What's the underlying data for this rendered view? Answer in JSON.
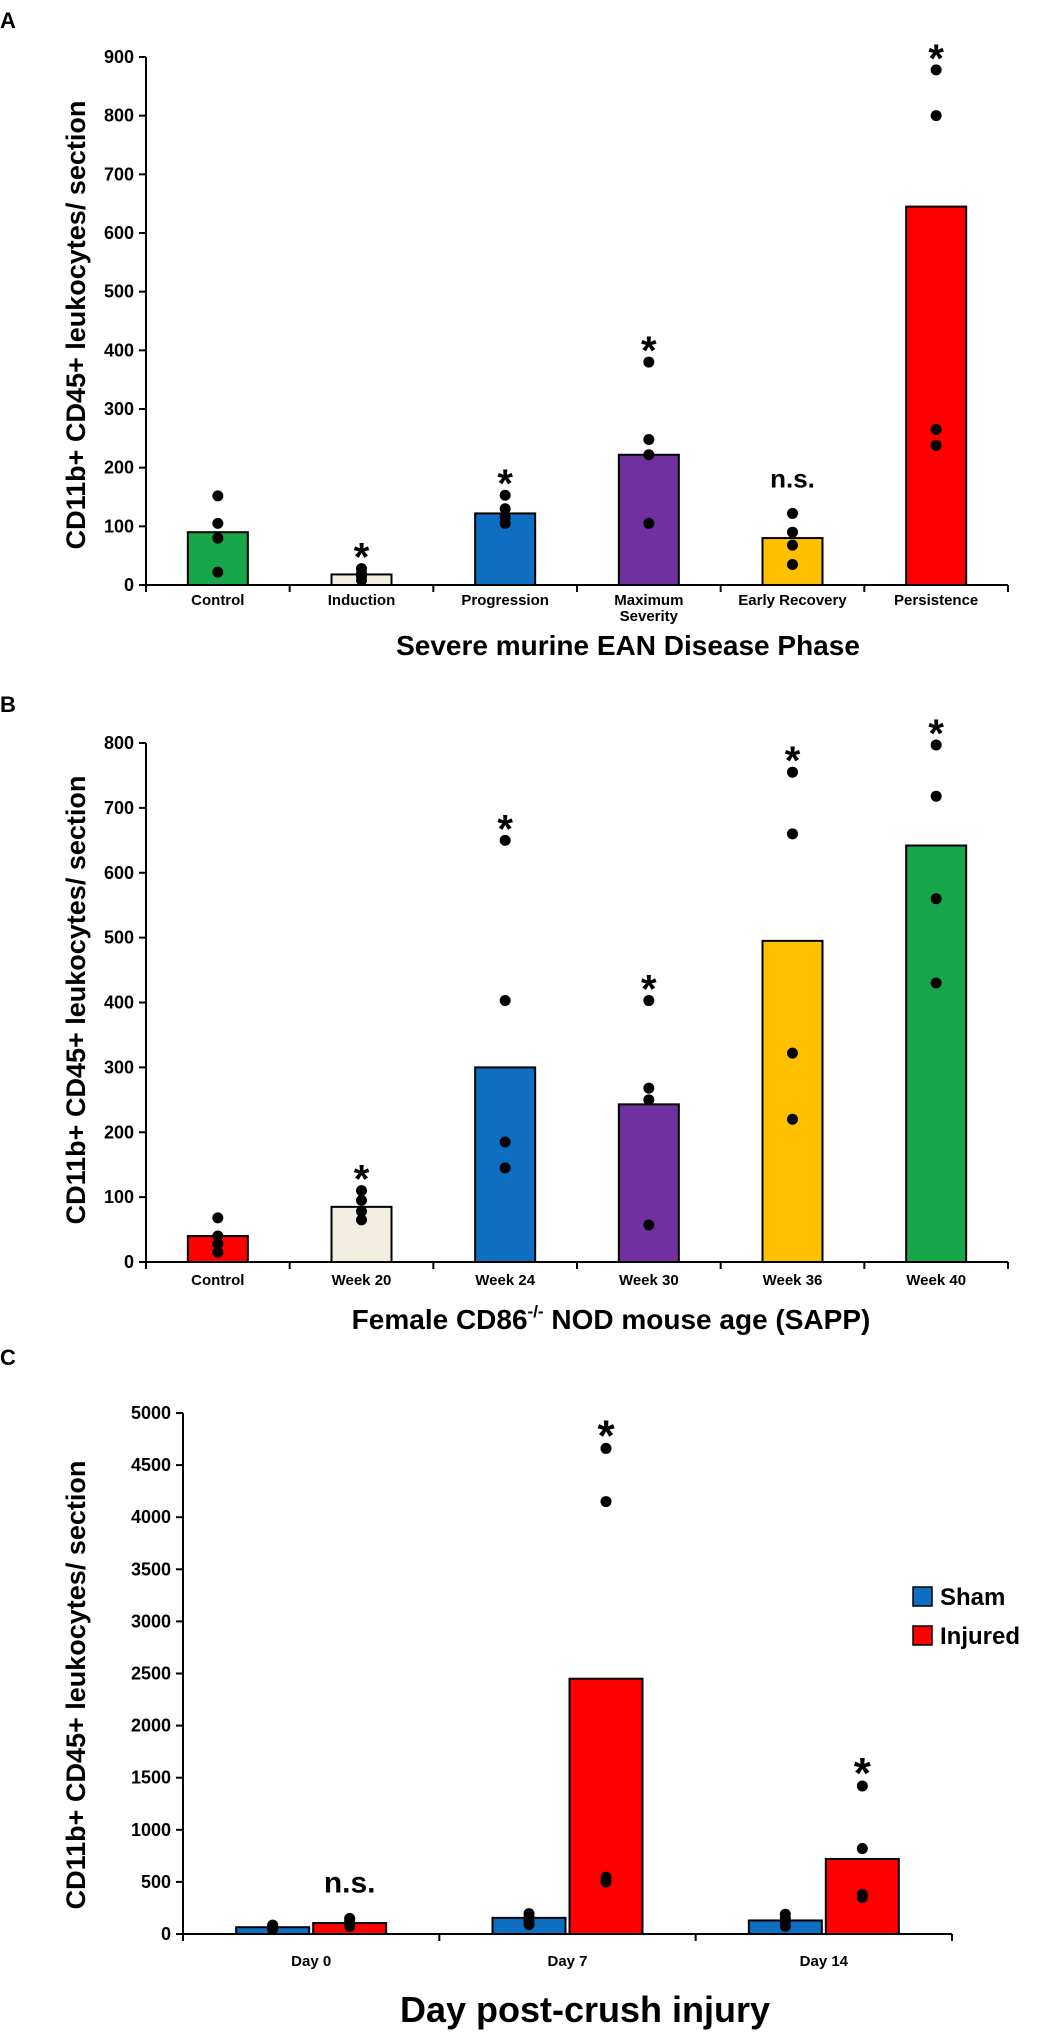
{
  "chart_data": [
    {
      "panel": "A",
      "type": "bar",
      "categories": [
        "Control",
        "Induction",
        "Progression",
        "Maximum Severity",
        "Early Recovery",
        "Persistence"
      ],
      "category_lines": [
        [
          "Control"
        ],
        [
          "Induction"
        ],
        [
          "Progression"
        ],
        [
          "Maximum",
          "Severity"
        ],
        [
          "Early Recovery"
        ],
        [
          "Persistence"
        ]
      ],
      "values": [
        90,
        18,
        122,
        222,
        80,
        645
      ],
      "colors": [
        "#17a64a",
        "#f1eee1",
        "#0e6fc2",
        "#7030a0",
        "#ffc000",
        "#ff0000"
      ],
      "points": [
        [
          22,
          80,
          105,
          152
        ],
        [
          8,
          15,
          20,
          28
        ],
        [
          105,
          115,
          130,
          153
        ],
        [
          105,
          222,
          248,
          380
        ],
        [
          35,
          68,
          90,
          122
        ],
        [
          238,
          265,
          800,
          878
        ]
      ],
      "significance": [
        "",
        "*",
        "*",
        "*",
        "n.s.",
        "*"
      ],
      "ylim": [
        0,
        900
      ],
      "yticks": [
        0,
        100,
        200,
        300,
        400,
        500,
        600,
        700,
        800,
        900
      ],
      "xlabel": "Severe murine EAN Disease Phase",
      "ylabel": "CD11b+ CD45+ leukocytes/ section"
    },
    {
      "panel": "B",
      "type": "bar",
      "categories": [
        "Control",
        "Week 20",
        "Week 24",
        "Week 30",
        "Week 36",
        "Week 40"
      ],
      "values": [
        40,
        85,
        300,
        243,
        495,
        642
      ],
      "colors": [
        "#ff0000",
        "#f1eee1",
        "#0e6fc2",
        "#7030a0",
        "#ffc000",
        "#17a64a"
      ],
      "points": [
        [
          15,
          28,
          40,
          68
        ],
        [
          65,
          78,
          95,
          110
        ],
        [
          145,
          185,
          403,
          650
        ],
        [
          57,
          250,
          268,
          403
        ],
        [
          220,
          322,
          660,
          755
        ],
        [
          430,
          560,
          718,
          797
        ]
      ],
      "significance": [
        "",
        "*",
        "*",
        "*",
        "*",
        "*"
      ],
      "ylim": [
        0,
        800
      ],
      "yticks": [
        0,
        100,
        200,
        300,
        400,
        500,
        600,
        700,
        800
      ],
      "xlabel_main": "Female CD86",
      "xlabel_sup": "-/-",
      "xlabel_tail": " NOD mouse age (SAPP)",
      "ylabel": "CD11b+ CD45+ leukocytes/ section"
    },
    {
      "panel": "C",
      "type": "bar",
      "categories": [
        "Day 0",
        "Day 7",
        "Day 14"
      ],
      "series": [
        {
          "name": "Sham",
          "color": "#0e6fc2",
          "values": [
            65,
            155,
            130
          ],
          "points": [
            [
              45,
              60,
              75,
              85
            ],
            [
              90,
              120,
              160,
              195
            ],
            [
              75,
              110,
              150,
              190
            ]
          ]
        },
        {
          "name": "Injured",
          "color": "#ff0000",
          "values": [
            105,
            2450,
            720
          ],
          "points": [
            [
              75,
              100,
              130,
              150
            ],
            [
              500,
              545,
              4150,
              4660
            ],
            [
              350,
              380,
              820,
              1420
            ]
          ]
        }
      ],
      "significance": [
        "n.s.",
        "*",
        "*"
      ],
      "ylim": [
        0,
        5000
      ],
      "yticks": [
        0,
        500,
        1000,
        1500,
        2000,
        2500,
        3000,
        3500,
        4000,
        4500,
        5000
      ],
      "xlabel": "Day post-crush injury",
      "ylabel": "CD11b+ CD45+ leukocytes/ section",
      "legend_position": "right"
    }
  ]
}
